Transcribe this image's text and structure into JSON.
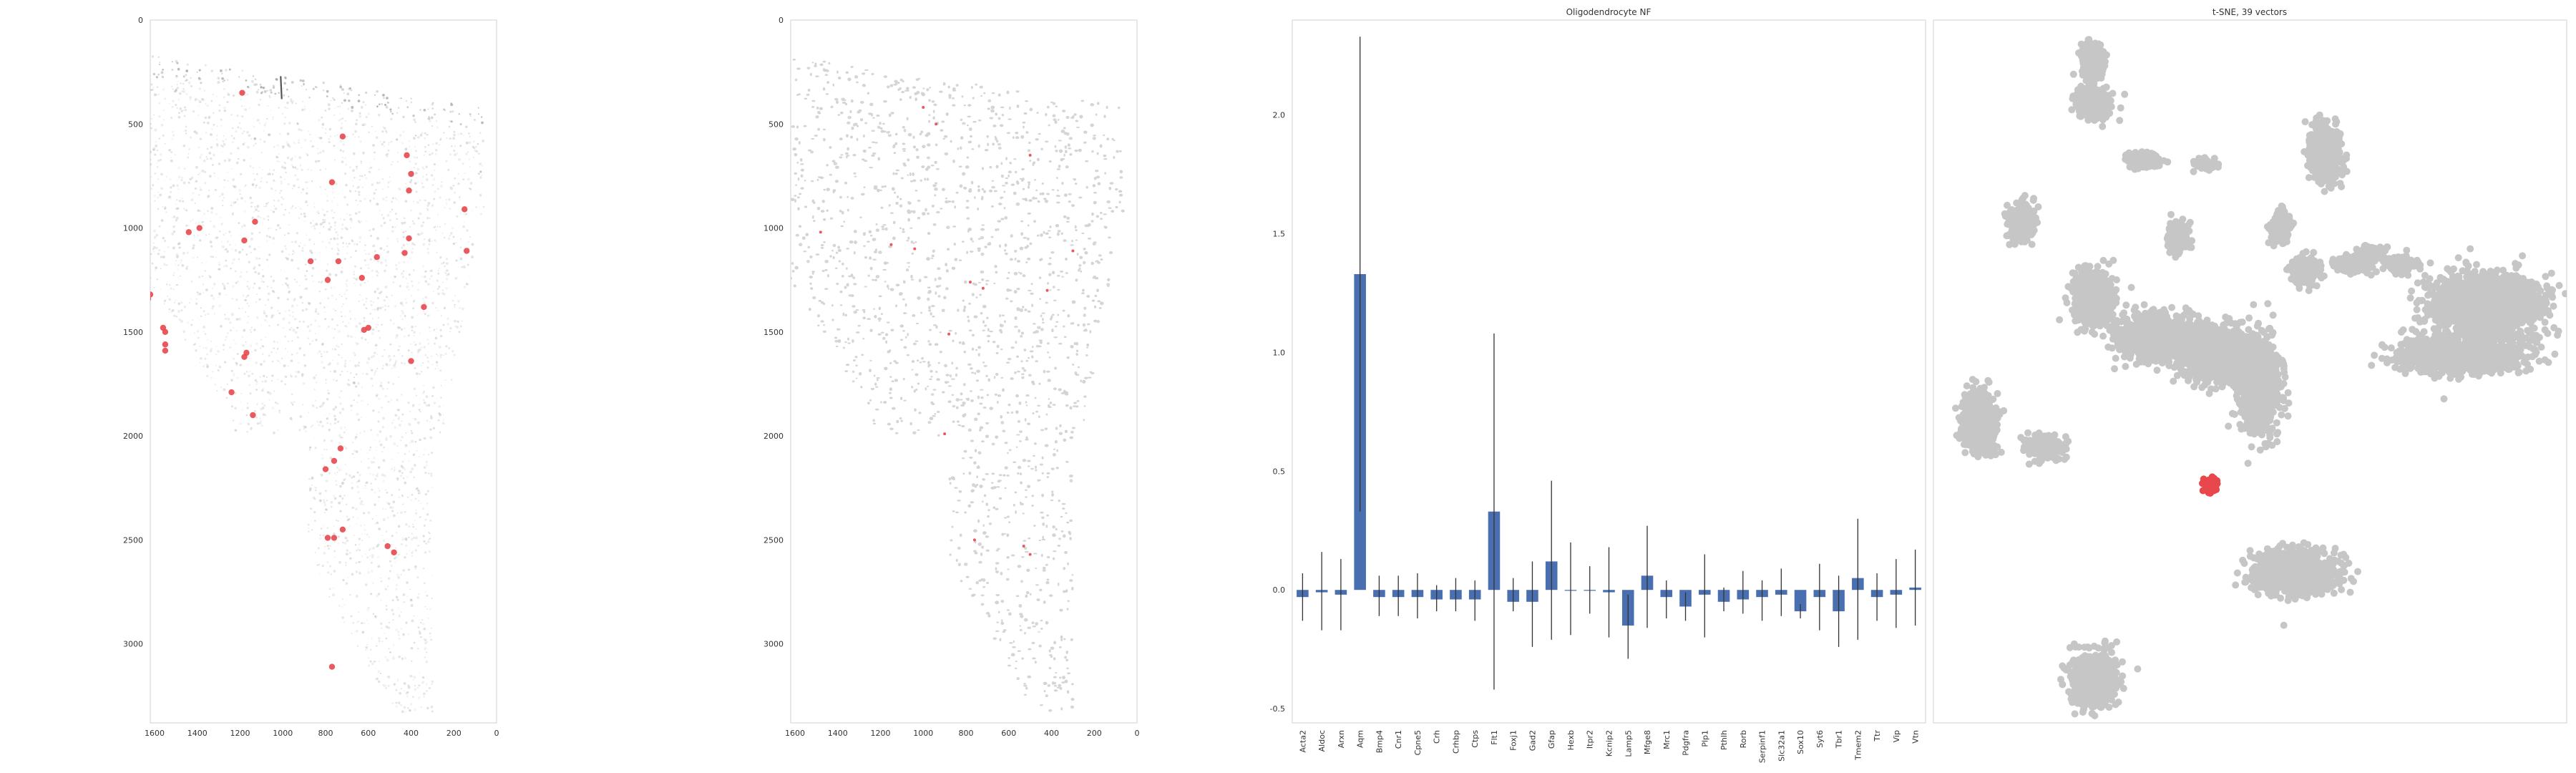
{
  "colors": {
    "highlight": "#e8474c",
    "tissue_gray": "#bdbdbd",
    "cluster_gray": "#c6c6c6",
    "bar": "#4a6fb0",
    "errorbar": "#333333",
    "frame": "#d0d0d0",
    "tick_text": "#333333"
  },
  "chart_data": [
    {
      "type": "scatter",
      "panel": "spatial-expression",
      "title": "",
      "x_ticks": [
        "1600",
        "1400",
        "1200",
        "1000",
        "800",
        "600",
        "400",
        "200",
        "0"
      ],
      "y_ticks": [
        "0",
        "500",
        "1000",
        "1500",
        "2000",
        "2500",
        "3000"
      ],
      "xlim": [
        1620,
        0
      ],
      "ylim": [
        3380,
        0
      ],
      "x_inverted": true,
      "y_inverted": true,
      "background": "gray tissue density",
      "highlight_points": [
        [
          1190,
          350
        ],
        [
          720,
          560
        ],
        [
          770,
          780
        ],
        [
          420,
          650
        ],
        [
          400,
          740
        ],
        [
          410,
          820
        ],
        [
          150,
          910
        ],
        [
          1130,
          970
        ],
        [
          1180,
          1060
        ],
        [
          1390,
          1000
        ],
        [
          1440,
          1020
        ],
        [
          870,
          1160
        ],
        [
          740,
          1160
        ],
        [
          790,
          1250
        ],
        [
          630,
          1240
        ],
        [
          430,
          1120
        ],
        [
          410,
          1050
        ],
        [
          560,
          1140
        ],
        [
          140,
          1110
        ],
        [
          1620,
          1320
        ],
        [
          1630,
          1340
        ],
        [
          340,
          1380
        ],
        [
          600,
          1480
        ],
        [
          620,
          1490
        ],
        [
          1560,
          1480
        ],
        [
          1550,
          1500
        ],
        [
          1550,
          1560
        ],
        [
          1550,
          1590
        ],
        [
          1170,
          1600
        ],
        [
          1180,
          1620
        ],
        [
          1240,
          1790
        ],
        [
          1140,
          1900
        ],
        [
          730,
          2060
        ],
        [
          760,
          2120
        ],
        [
          800,
          2160
        ],
        [
          720,
          2450
        ],
        [
          790,
          2490
        ],
        [
          760,
          2490
        ],
        [
          510,
          2530
        ],
        [
          480,
          2560
        ],
        [
          770,
          3110
        ],
        [
          400,
          1640
        ]
      ]
    },
    {
      "type": "scatter",
      "panel": "cell-segmentation",
      "title": "",
      "x_ticks": [
        "1600",
        "1400",
        "1200",
        "1000",
        "800",
        "600",
        "400",
        "200",
        "0"
      ],
      "y_ticks": [
        "0",
        "500",
        "1000",
        "1500",
        "2000",
        "2500",
        "3000"
      ],
      "xlim": [
        1620,
        0
      ],
      "ylim": [
        3380,
        0
      ],
      "x_inverted": true,
      "y_inverted": true,
      "background": "gray segmented cells",
      "highlight_points": [
        [
          1000,
          420
        ],
        [
          940,
          500
        ],
        [
          500,
          650
        ],
        [
          1480,
          1020
        ],
        [
          1150,
          1080
        ],
        [
          780,
          1260
        ],
        [
          720,
          1290
        ],
        [
          420,
          1300
        ],
        [
          880,
          1510
        ],
        [
          900,
          1990
        ],
        [
          760,
          2500
        ],
        [
          530,
          2530
        ],
        [
          500,
          2570
        ],
        [
          300,
          1110
        ],
        [
          1040,
          1100
        ]
      ]
    },
    {
      "type": "bar",
      "panel": "neighborhood-factor",
      "title": "Oligodendrocyte NF",
      "categories": [
        "Acta2",
        "Aldoc",
        "Arxn",
        "Aqm",
        "Bmp4",
        "Cnr1",
        "Cpne5",
        "Crh",
        "Crhbp",
        "Ctps",
        "Flt1",
        "Foxj1",
        "Gad2",
        "Gfap",
        "Hexb",
        "Itpr2",
        "Kcnip2",
        "Lamp5",
        "Mfge8",
        "Mrc1",
        "Pdgfra",
        "Plp1",
        "Pthlh",
        "Rorb",
        "Serpinf1",
        "Slc32a1",
        "Sox10",
        "Syt6",
        "Tbr1",
        "Tmem2",
        "Ttr",
        "Vip",
        "Vtn"
      ],
      "values": [
        -0.03,
        -0.01,
        -0.02,
        1.33,
        -0.03,
        -0.03,
        -0.03,
        -0.04,
        -0.04,
        -0.04,
        0.33,
        -0.05,
        -0.05,
        0.12,
        0.0,
        0.0,
        -0.01,
        -0.15,
        0.06,
        -0.03,
        -0.07,
        -0.02,
        -0.05,
        -0.04,
        -0.03,
        -0.02,
        -0.09,
        -0.03,
        -0.09,
        0.05,
        -0.03,
        -0.02,
        0.01
      ],
      "error_low": [
        -0.13,
        -0.17,
        -0.17,
        0.33,
        -0.11,
        -0.11,
        -0.12,
        -0.09,
        -0.09,
        -0.13,
        -0.42,
        -0.09,
        -0.24,
        -0.21,
        -0.19,
        -0.1,
        -0.2,
        -0.29,
        -0.16,
        -0.12,
        -0.13,
        -0.2,
        -0.09,
        -0.1,
        -0.13,
        -0.11,
        -0.12,
        -0.17,
        -0.24,
        -0.21,
        -0.13,
        -0.16,
        -0.15
      ],
      "error_high": [
        0.07,
        0.16,
        0.13,
        2.33,
        0.06,
        0.06,
        0.07,
        0.02,
        0.05,
        0.04,
        1.08,
        0.05,
        0.12,
        0.46,
        0.2,
        0.1,
        0.18,
        -0.02,
        0.27,
        0.04,
        -0.01,
        0.15,
        0.01,
        0.08,
        0.04,
        0.09,
        -0.06,
        0.11,
        0.06,
        0.3,
        0.07,
        0.13,
        0.17
      ],
      "y_ticks": [
        "-0.5",
        "0.0",
        "0.5",
        "1.0",
        "1.5",
        "2.0"
      ],
      "ylim": [
        -0.56,
        2.4
      ],
      "xlabel": "",
      "ylabel": ""
    },
    {
      "type": "scatter",
      "panel": "tsne",
      "title": "t-SNE, 39 vectors",
      "axes_visible": false,
      "clusters": [
        {
          "center": [
            -0.52,
            0.93
          ],
          "spread": [
            0.035,
            0.045
          ],
          "highlight": false
        },
        {
          "center": [
            -0.52,
            0.8
          ],
          "spread": [
            0.05,
            0.04
          ],
          "highlight": false
        },
        {
          "center": [
            -0.35,
            0.63
          ],
          "spread": [
            0.05,
            0.02
          ],
          "highlight": false
        },
        {
          "center": [
            -0.15,
            0.62
          ],
          "spread": [
            0.03,
            0.015
          ],
          "highlight": false
        },
        {
          "center": [
            0.25,
            0.65
          ],
          "spread": [
            0.045,
            0.07
          ],
          "highlight": false
        },
        {
          "center": [
            -0.76,
            0.45
          ],
          "spread": [
            0.04,
            0.05
          ],
          "highlight": false
        },
        {
          "center": [
            0.1,
            0.43
          ],
          "spread": [
            0.03,
            0.04
          ],
          "highlight": false
        },
        {
          "center": [
            0.34,
            0.32
          ],
          "spread": [
            0.06,
            0.02
          ],
          "highlight": false
        },
        {
          "center": [
            0.4,
            0.35
          ],
          "spread": [
            0.04,
            0.02
          ],
          "highlight": false
        },
        {
          "center": [
            -0.24,
            0.4
          ],
          "spread": [
            0.03,
            0.04
          ],
          "highlight": false
        },
        {
          "center": [
            0.18,
            0.3
          ],
          "spread": [
            0.04,
            0.04
          ],
          "highlight": false
        },
        {
          "center": [
            0.5,
            0.32
          ],
          "spread": [
            0.04,
            0.02
          ],
          "highlight": false
        },
        {
          "center": [
            0.78,
            0.2
          ],
          "spread": [
            0.16,
            0.08
          ],
          "highlight": false
        },
        {
          "center": [
            0.7,
            0.05
          ],
          "spread": [
            0.18,
            0.05
          ],
          "highlight": false
        },
        {
          "center": [
            -0.52,
            0.22
          ],
          "spread": [
            0.06,
            0.07
          ],
          "highlight": false
        },
        {
          "center": [
            -0.3,
            0.1
          ],
          "spread": [
            0.12,
            0.06
          ],
          "highlight": false
        },
        {
          "center": [
            -0.1,
            0.05
          ],
          "spread": [
            0.12,
            0.07
          ],
          "highlight": false
        },
        {
          "center": [
            0.03,
            -0.05
          ],
          "spread": [
            0.06,
            0.12
          ],
          "highlight": false
        },
        {
          "center": [
            -0.9,
            -0.15
          ],
          "spread": [
            0.05,
            0.08
          ],
          "highlight": false
        },
        {
          "center": [
            -0.68,
            -0.23
          ],
          "spread": [
            0.05,
            0.03
          ],
          "highlight": false
        },
        {
          "center": [
            0.15,
            -0.6
          ],
          "spread": [
            0.12,
            0.06
          ],
          "highlight": false
        },
        {
          "center": [
            -0.52,
            -0.92
          ],
          "spread": [
            0.07,
            0.07
          ],
          "highlight": false
        },
        {
          "center": [
            -0.13,
            -0.34
          ],
          "spread": [
            0.025,
            0.022
          ],
          "highlight": true
        }
      ]
    }
  ]
}
